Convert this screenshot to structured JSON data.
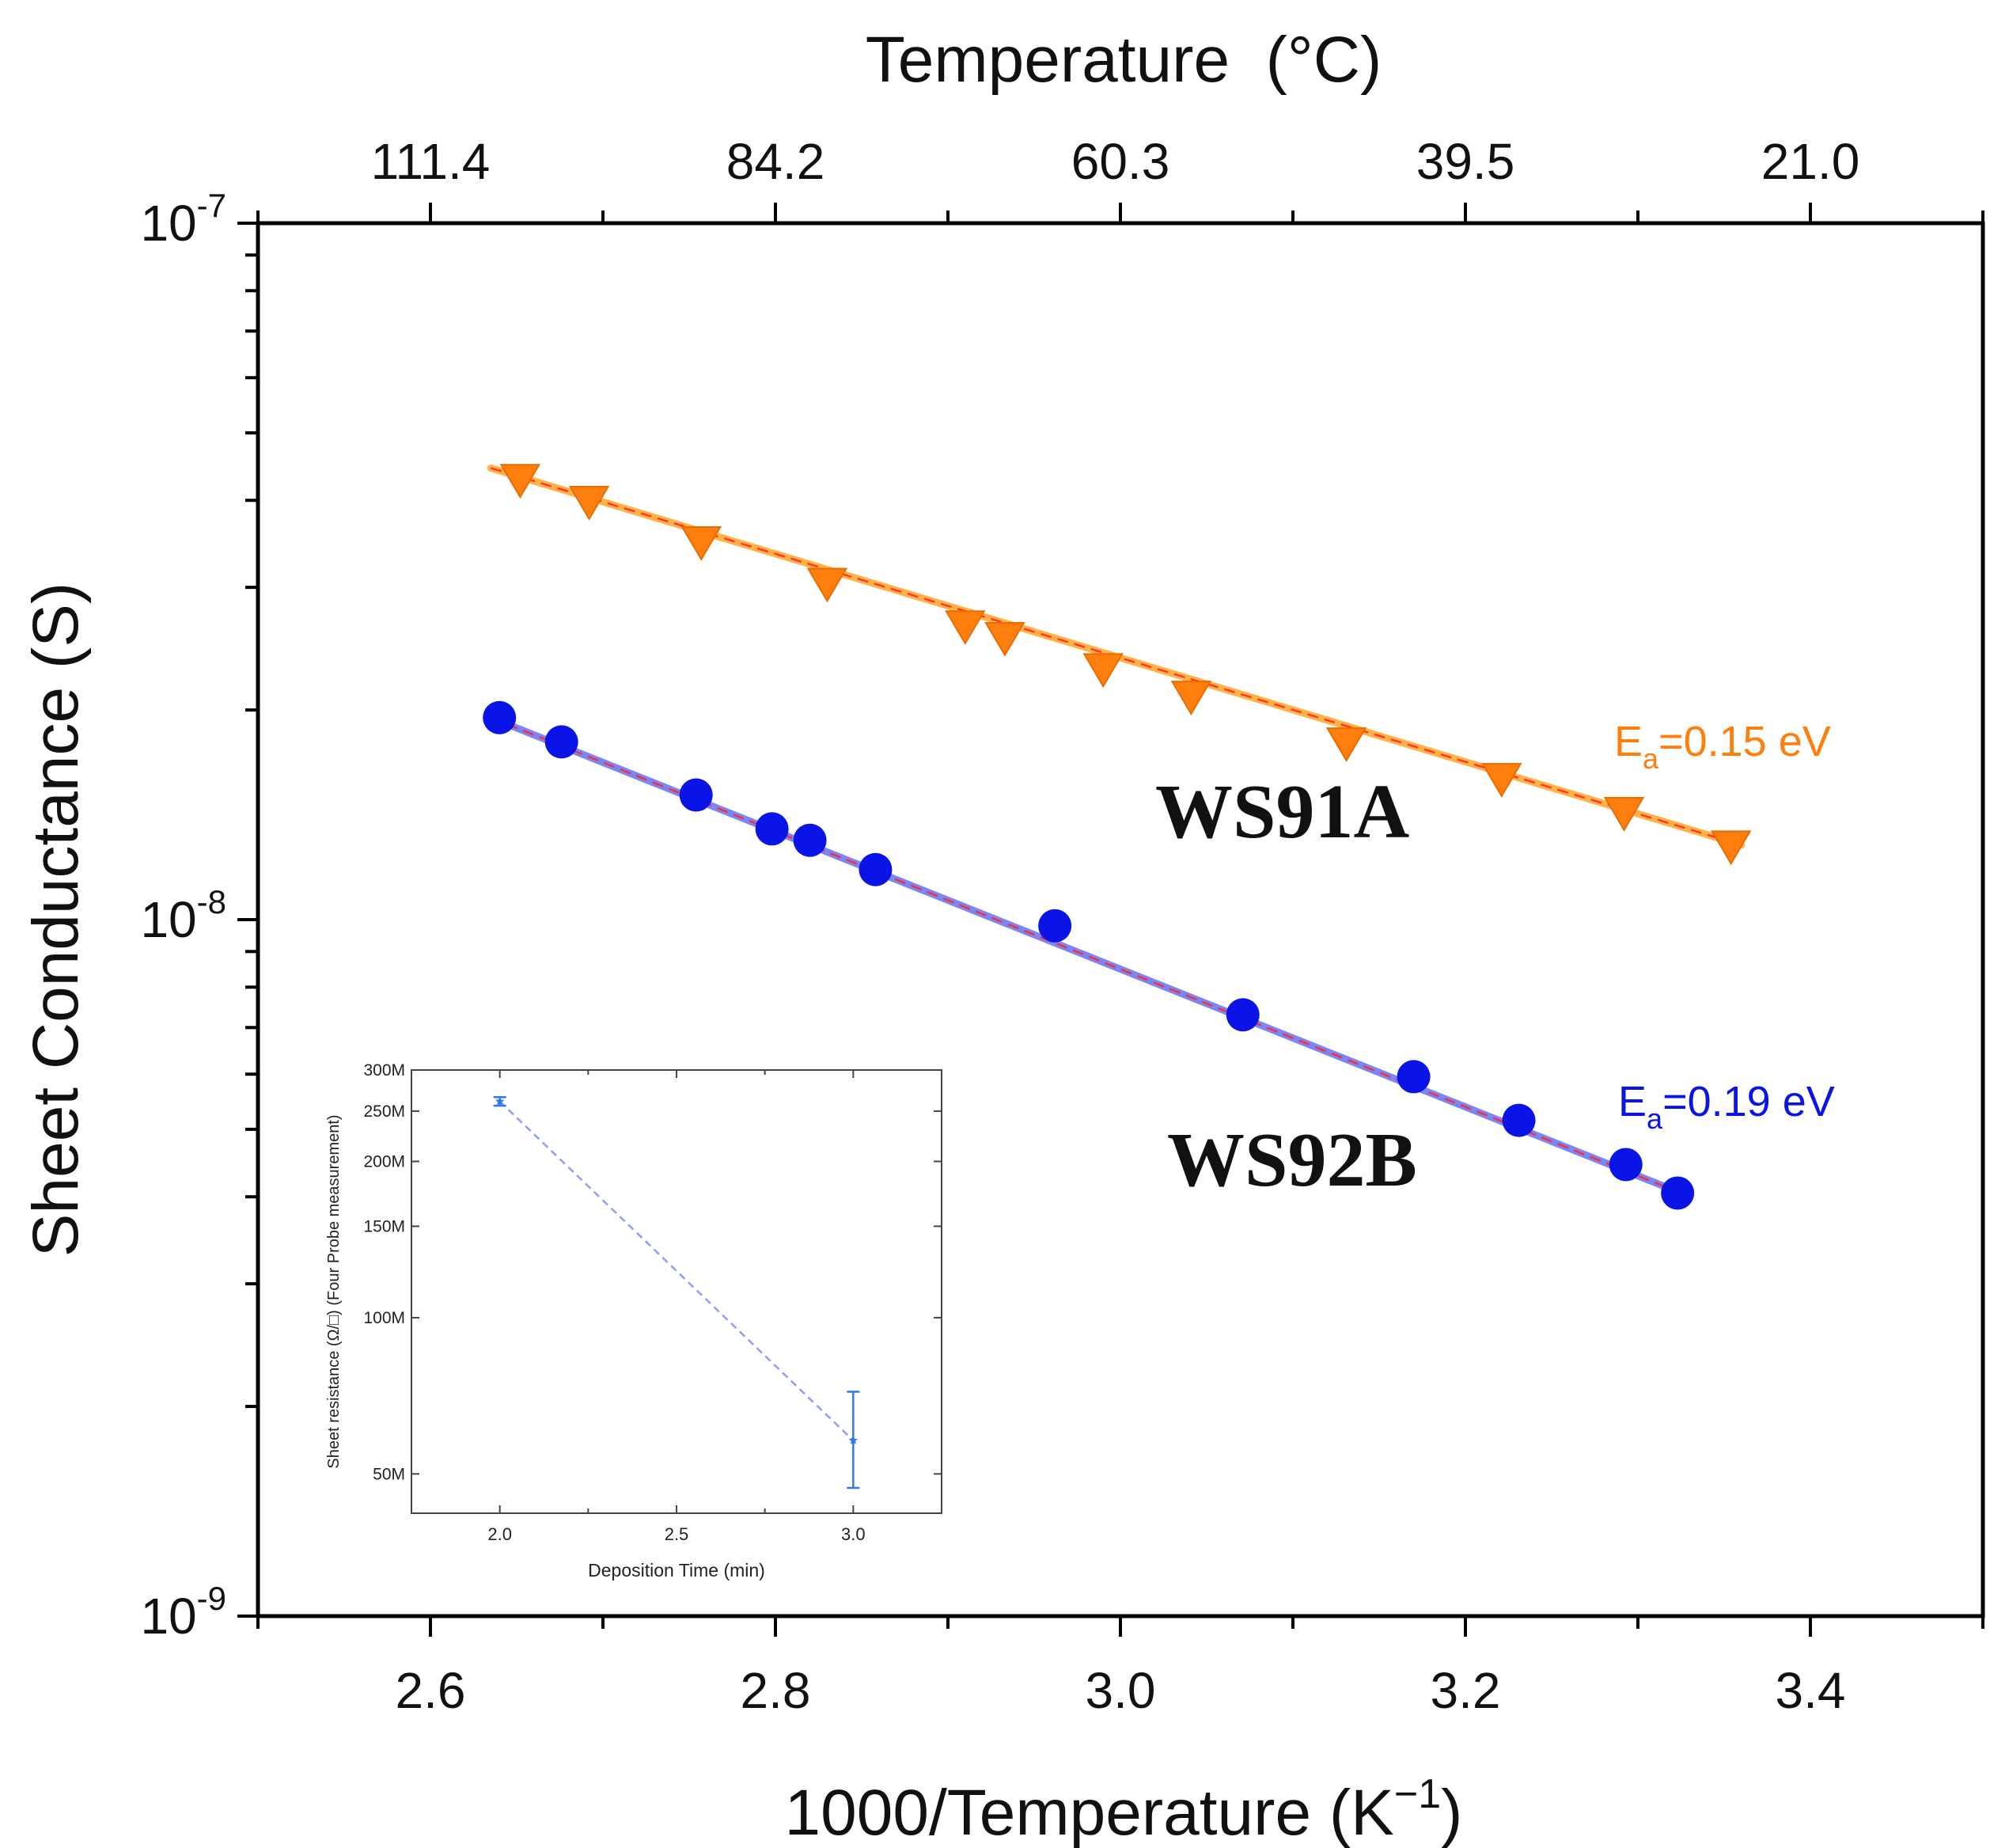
{
  "chart_data": [
    {
      "type": "scatter",
      "xlabel": "1000/Temperature (K",
      "xlabel_sup": "−1",
      "xlabel_end": ")",
      "ylabel": "Sheet Conductance (S)",
      "top_axis_label": "Temperature  (°C)",
      "top_tick_labels": [
        "111.4",
        "84.2",
        "60.3",
        "39.5",
        "21.0"
      ],
      "top_tick_positions": [
        2.6,
        2.8,
        3.0,
        3.2,
        3.4
      ],
      "xlim": [
        2.5,
        3.5
      ],
      "xticks": [
        "2.6",
        "2.8",
        "3.0",
        "3.2",
        "3.4"
      ],
      "y_scale": "log",
      "ylim": [
        1e-09,
        1e-07
      ],
      "yticks": [
        {
          "base": "10",
          "exp": "-9",
          "value": 1e-09
        },
        {
          "base": "10",
          "exp": "-8",
          "value": 1e-08
        },
        {
          "base": "10",
          "exp": "-7",
          "value": 1e-07
        }
      ],
      "grid": false,
      "series": [
        {
          "name": "WS91A",
          "marker": "down-triangle",
          "color": "#ff7f0e",
          "fit_color": "#ffb347",
          "x": [
            2.652,
            2.692,
            2.757,
            2.83,
            2.91,
            2.933,
            2.99,
            3.041,
            3.131,
            3.221,
            3.292,
            3.354
          ],
          "y": [
            4.3e-08,
            4e-08,
            3.5e-08,
            3.05e-08,
            2.65e-08,
            2.55e-08,
            2.3e-08,
            2.1e-08,
            1.8e-08,
            1.6e-08,
            1.43e-08,
            1.28e-08
          ],
          "fit": {
            "x": [
              2.635,
              3.36
            ],
            "y": [
              4.45e-08,
              1.28e-08
            ]
          },
          "annotation_prefix": "E",
          "annotation_sub": "a",
          "annotation_suffix": "=0.15 eV"
        },
        {
          "name": "WS92B",
          "marker": "circle",
          "color": "#0a14e6",
          "fit_color": "#7a86f5",
          "x": [
            2.64,
            2.676,
            2.754,
            2.798,
            2.82,
            2.858,
            2.962,
            3.071,
            3.17,
            3.231,
            3.293,
            3.323
          ],
          "y": [
            1.95e-08,
            1.8e-08,
            1.51e-08,
            1.35e-08,
            1.3e-08,
            1.18e-08,
            9.8e-09,
            7.3e-09,
            5.95e-09,
            5.15e-09,
            4.45e-09,
            4.05e-09
          ],
          "fit": {
            "x": [
              2.635,
              3.325
            ],
            "y": [
              1.95e-08,
              4.05e-09
            ]
          },
          "annotation_prefix": "E",
          "annotation_sub": "a",
          "annotation_suffix": "=0.19 eV"
        }
      ],
      "sample_labels": [
        "WS91A",
        "WS92B"
      ]
    },
    {
      "type": "line",
      "inset": true,
      "xlabel": "Deposition Time (min)",
      "ylabel": "Sheet resistance  (Ω/□) (Four Probe measurement)",
      "xlim": [
        1.75,
        3.25
      ],
      "xticks": [
        "2.0",
        "2.5",
        "3.0"
      ],
      "xtick_values": [
        2.0,
        2.5,
        3.0
      ],
      "y_scale": "log",
      "ylim": [
        42000000,
        300000000
      ],
      "yticks": [
        "50M",
        "100M",
        "150M",
        "200M",
        "250M",
        "300M"
      ],
      "ytick_values": [
        50000000,
        100000000,
        150000000,
        200000000,
        250000000,
        300000000
      ],
      "series": [
        {
          "color": "#2b7be8",
          "line_color": "#8d9cff",
          "x": [
            2.0,
            3.0
          ],
          "y": [
            261000000,
            58000000
          ],
          "yerr_low": [
            256000000,
            47000000
          ],
          "yerr_high": [
            266000000,
            72000000
          ]
        }
      ]
    }
  ]
}
